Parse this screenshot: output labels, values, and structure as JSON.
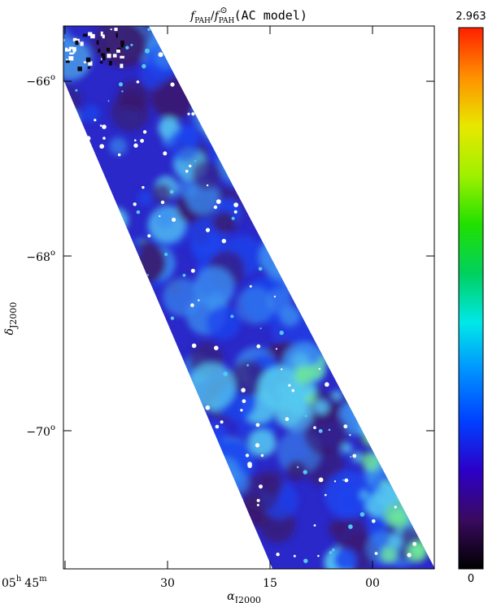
{
  "chart_data": {
    "type": "heatmap",
    "title": "f_PAH / f_PAH^⊙ (AC model)",
    "title_parts": {
      "main": "f",
      "main_sub": "PAH",
      "slash": "/",
      "ref": "f",
      "ref_sub": "PAH",
      "ref_sup": "⊙",
      "suffix": "(AC model)"
    },
    "xlabel": {
      "main": "α",
      "sub": "J2000"
    },
    "ylabel": {
      "main": "δ",
      "sub": "J2000"
    },
    "x_ticks": [
      {
        "label_h": "05",
        "h_unit": "h",
        "label_m": "45",
        "m_unit": "m",
        "value_ra_min": 45
      },
      {
        "label": "30",
        "value_ra_min": 30
      },
      {
        "label": "15",
        "value_ra_min": 15
      },
      {
        "label": "00",
        "value_ra_min": 0
      }
    ],
    "y_ticks": [
      {
        "label": "−66",
        "unit": "o",
        "value_deg": -66
      },
      {
        "label": "−68",
        "unit": "o",
        "value_deg": -68
      },
      {
        "label": "−70",
        "unit": "o",
        "value_deg": -70
      }
    ],
    "colorbar": {
      "min": 0,
      "max": 2.963,
      "min_label": "0",
      "max_label": "2.963",
      "colors": [
        "#000000",
        "#3a0a60",
        "#2c00c8",
        "#0040ff",
        "#0090ff",
        "#00e8e8",
        "#00d060",
        "#20e000",
        "#a0f000",
        "#e8e800",
        "#ff9000",
        "#ff2000"
      ]
    },
    "map_palette": {
      "background": "#2a28c8",
      "dark": "#3a1a6e",
      "mid": "#1c44ee",
      "light": "#3a8cf0",
      "cyan": "#55c8f0",
      "green": "#6ee89a",
      "white": "#ffffff",
      "black": "#0a0410"
    }
  }
}
